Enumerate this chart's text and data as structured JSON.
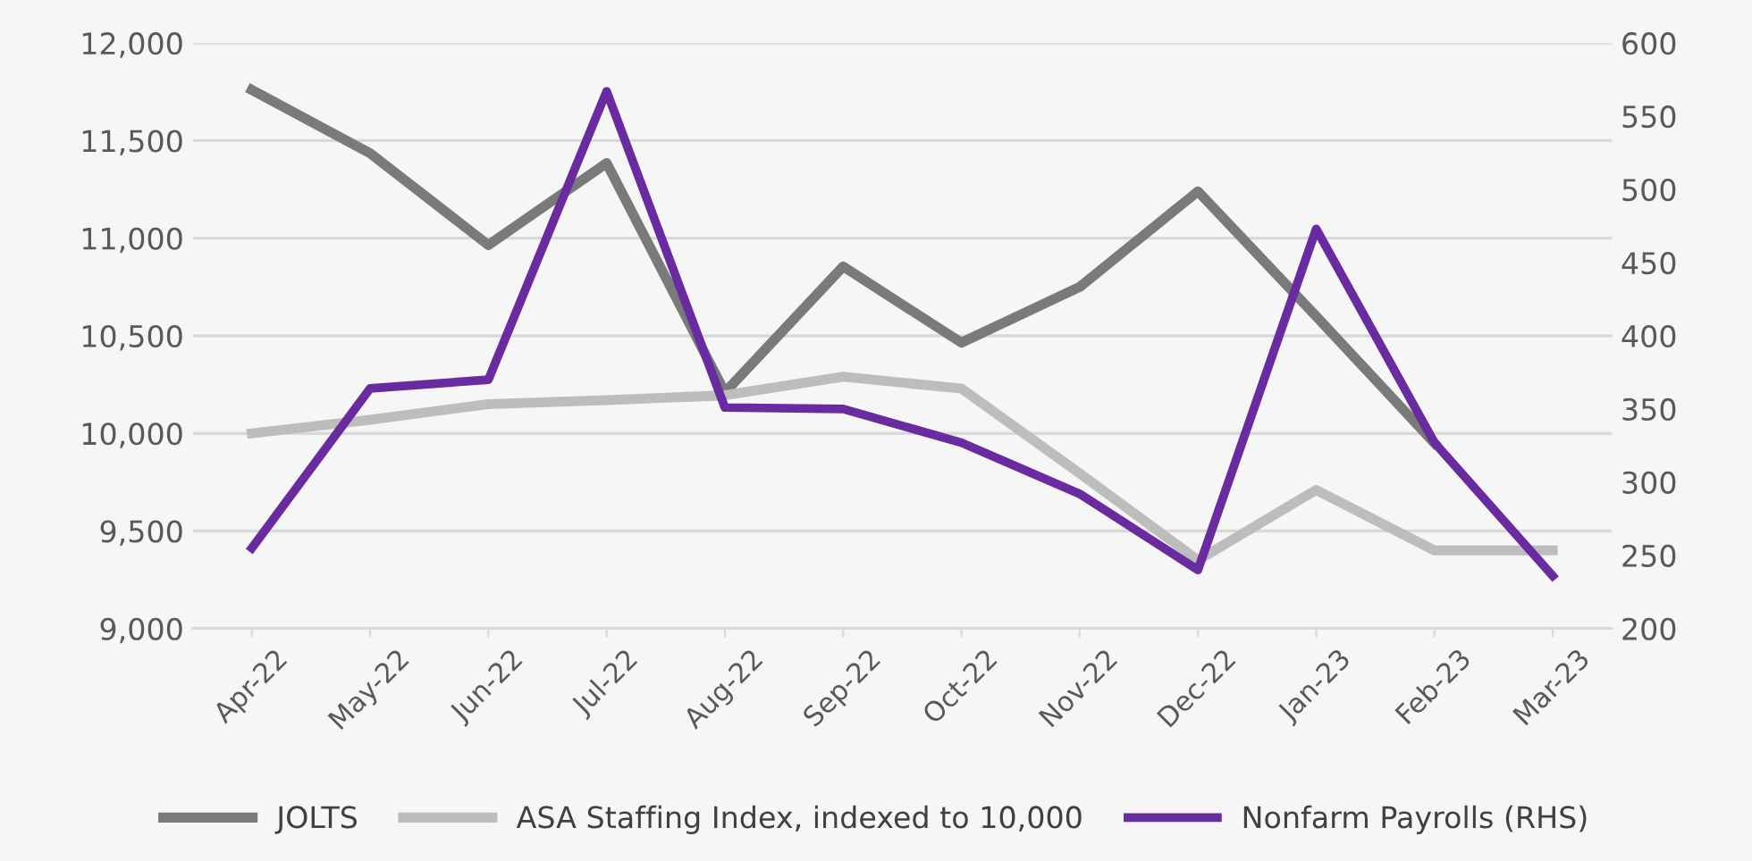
{
  "chart_data": {
    "type": "line",
    "categories": [
      "Apr-22",
      "May-22",
      "Jun-22",
      "Jul-22",
      "Aug-22",
      "Sep-22",
      "Oct-22",
      "Nov-22",
      "Dec-22",
      "Jan-23",
      "Feb-23",
      "Mar-23"
    ],
    "series": [
      {
        "name": "JOLTS",
        "color": "#7a7a7a",
        "values": [
          11760,
          11435,
          10965,
          11385,
          10210,
          10855,
          10465,
          10750,
          11240,
          10600,
          9950,
          null
        ]
      },
      {
        "name": "ASA Staffing Index, indexed to 10,000",
        "color": "#bdbdbd",
        "values": [
          10000,
          10070,
          10150,
          10170,
          10195,
          10290,
          10230,
          9795,
          9350,
          9710,
          9400,
          9400
        ]
      },
      {
        "name": "Nonfarm Payrolls (RHS)",
        "color": "#6a2aa0",
        "axis": "y2",
        "values": [
          255,
          364,
          370,
          567,
          351,
          350,
          327,
          292,
          240,
          473,
          327,
          236
        ]
      }
    ],
    "ylim": [
      9000,
      12000
    ],
    "yticks": [
      {
        "value": 9000,
        "label": "9,000"
      },
      {
        "value": 9500,
        "label": "9,500"
      },
      {
        "value": 10000,
        "label": "10,000"
      },
      {
        "value": 10500,
        "label": "10,500"
      },
      {
        "value": 11000,
        "label": "11,000"
      },
      {
        "value": 11500,
        "label": "11,500"
      },
      {
        "value": 12000,
        "label": "12,000"
      }
    ],
    "y2lim": [
      200,
      600
    ],
    "y2ticks": [
      200,
      250,
      300,
      350,
      400,
      450,
      500,
      550,
      600
    ],
    "grid": "y",
    "legend": "bottom",
    "line_style": "solid",
    "marker": "none"
  }
}
